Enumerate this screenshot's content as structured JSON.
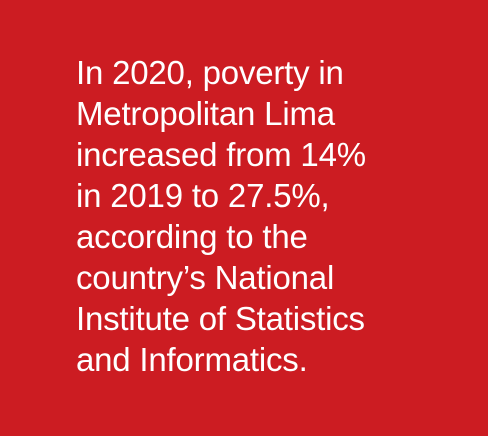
{
  "card": {
    "background_color": "#cc1c22",
    "text_color": "#ffffff",
    "lines": [
      "In 2020, poverty in",
      "Metropolitan Lima",
      "increased from 14%",
      "in 2019 to 27.5%,",
      "according to the",
      "country’s National",
      "Institute of Statistics",
      "and Informatics."
    ]
  }
}
